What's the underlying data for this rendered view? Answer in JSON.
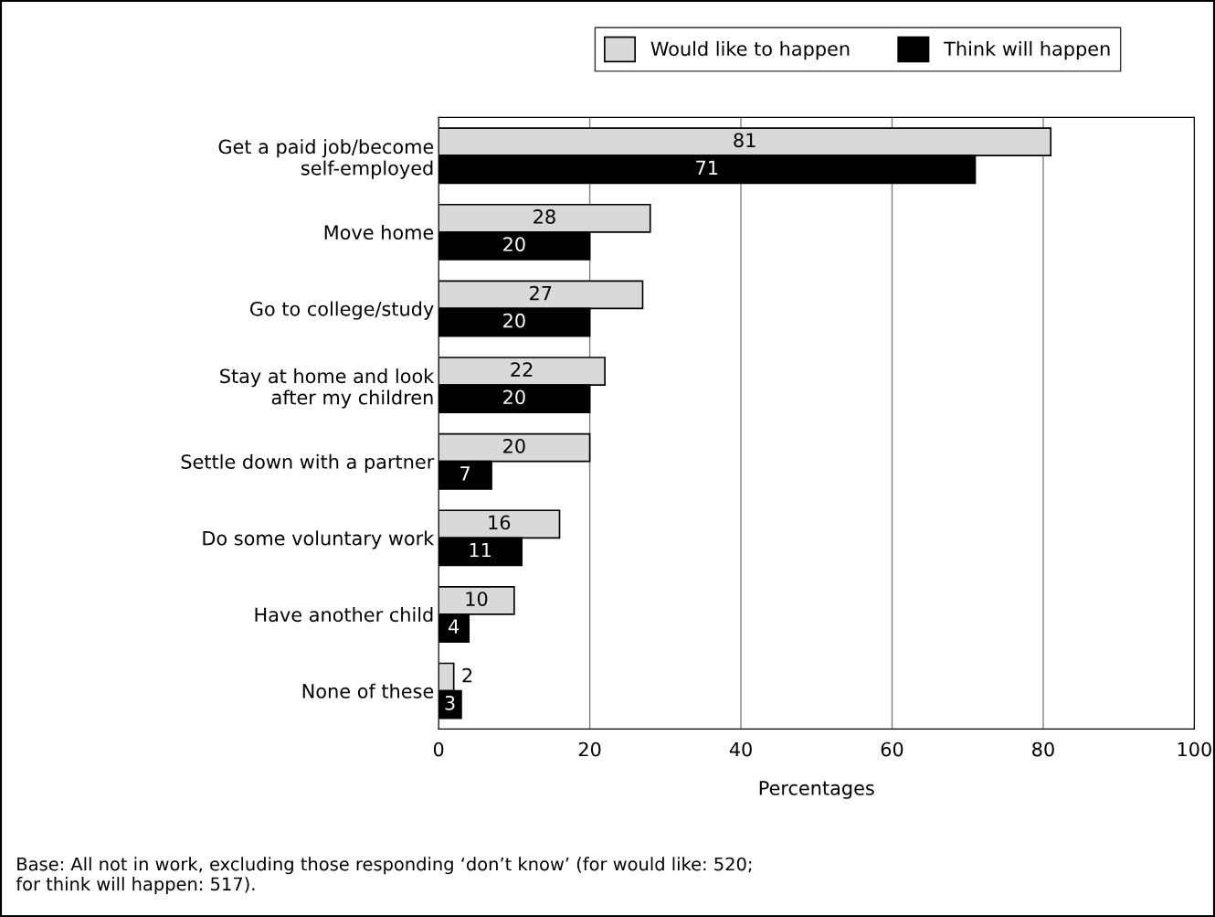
{
  "chart_data": {
    "type": "bar",
    "orientation": "horizontal",
    "categories": [
      "Get a paid job/become\nself-employed",
      "Move home",
      "Go to college/study",
      "Stay at home and look\nafter my children",
      "Settle down with a partner",
      "Do some voluntary work",
      "Have another child",
      "None of these"
    ],
    "series": [
      {
        "name": "Would like to happen",
        "color": "#d9d9d9",
        "values": [
          81,
          28,
          27,
          22,
          20,
          16,
          10,
          2
        ]
      },
      {
        "name": "Think will happen",
        "color": "#000000",
        "values": [
          71,
          20,
          20,
          20,
          7,
          11,
          4,
          3
        ]
      }
    ],
    "xlim": [
      0,
      100
    ],
    "xticks": [
      0,
      20,
      40,
      60,
      80,
      100
    ],
    "xlabel": "Percentages",
    "grid": "x",
    "legend": "top right",
    "data_labels": true,
    "annotations": [
      "Base: All not in work, excluding those responding ‘don’t know’ (for would like: 520;\nfor think will happen: 517)."
    ]
  }
}
